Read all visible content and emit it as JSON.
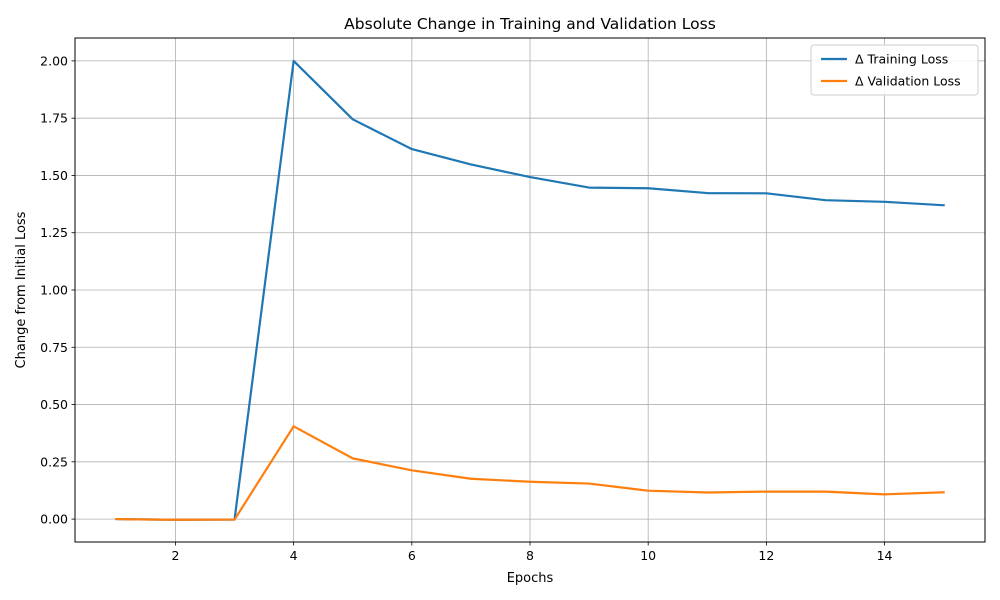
{
  "chart_data": {
    "type": "line",
    "title": "Absolute Change in Training and Validation Loss",
    "xlabel": "Epochs",
    "ylabel": "Change from Initial Loss",
    "xlim": [
      0.3,
      15.7
    ],
    "ylim": [
      -0.1,
      2.1
    ],
    "xticks": [
      2,
      4,
      6,
      8,
      10,
      12,
      14
    ],
    "yticks": [
      "0.00",
      "0.25",
      "0.50",
      "0.75",
      "1.00",
      "1.25",
      "1.50",
      "1.75",
      "2.00"
    ],
    "grid": true,
    "legend_position": "top-right",
    "x": [
      1,
      2,
      3,
      4,
      5,
      6,
      7,
      8,
      9,
      10,
      11,
      12,
      13,
      14,
      15
    ],
    "series": [
      {
        "name": "Δ Training Loss",
        "color": "#1f77b4",
        "values": [
          0.0,
          -0.003,
          -0.002,
          2.0,
          1.745,
          1.615,
          1.548,
          1.493,
          1.447,
          1.444,
          1.423,
          1.422,
          1.392,
          1.385,
          1.37
        ]
      },
      {
        "name": "Δ Validation Loss",
        "color": "#ff7f0e",
        "values": [
          0.0,
          -0.003,
          -0.002,
          0.405,
          0.265,
          0.213,
          0.176,
          0.163,
          0.155,
          0.124,
          0.116,
          0.12,
          0.12,
          0.108,
          0.117
        ]
      }
    ]
  }
}
